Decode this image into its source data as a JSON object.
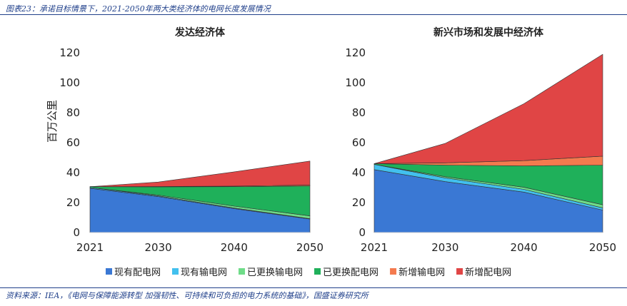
{
  "figure_title": "图表23：承诺目标情景下，2021-2050年两大类经济体的电网长度发展情况",
  "source": "资料来源：IEA，《电网与保障能源转型 加强韧性、可持续和可负担的电力系统的基础》，国盛证券研究所",
  "chart_data": [
    {
      "type": "area",
      "stacked": true,
      "title": "发达经济体",
      "ylabel": "百万公里",
      "x": [
        2021,
        2030,
        2040,
        2050
      ],
      "ylim": [
        0,
        120
      ],
      "yticks": [
        0,
        20,
        40,
        60,
        80,
        100,
        120
      ],
      "xticks": [
        "2021",
        "2030",
        "2040",
        "2050"
      ],
      "series": [
        {
          "name": "现有配电网",
          "color": "#3a78d4",
          "values": [
            29.5,
            24,
            16,
            9
          ]
        },
        {
          "name": "现有输电网",
          "color": "#42c0ee",
          "values": [
            0.6,
            0.5,
            0.4,
            0.3
          ]
        },
        {
          "name": "已更换输电网",
          "color": "#6fdc88",
          "values": [
            0,
            0.5,
            1.2,
            1.8
          ]
        },
        {
          "name": "已更换配电网",
          "color": "#1fb05a",
          "values": [
            0.5,
            5.5,
            13,
            20
          ]
        },
        {
          "name": "新增输电网",
          "color": "#f47a4e",
          "values": [
            0,
            0.2,
            0.4,
            0.6
          ]
        },
        {
          "name": "新增配电网",
          "color": "#e04545",
          "values": [
            0,
            3,
            9.5,
            16
          ]
        }
      ]
    },
    {
      "type": "area",
      "stacked": true,
      "title": "新兴市场和发展中经济体",
      "x": [
        2021,
        2030,
        2040,
        2050
      ],
      "ylim": [
        0,
        120
      ],
      "yticks": [
        0,
        20,
        40,
        60,
        80,
        100,
        120
      ],
      "xticks": [
        "2021",
        "2030",
        "2040",
        "2050"
      ],
      "series": [
        {
          "name": "现有配电网",
          "color": "#3a78d4",
          "values": [
            42,
            34,
            27,
            15
          ]
        },
        {
          "name": "现有输电网",
          "color": "#42c0ee",
          "values": [
            3.5,
            2.5,
            1.8,
            1.5
          ]
        },
        {
          "name": "已更换输电网",
          "color": "#6fdc88",
          "values": [
            0,
            0.8,
            1.4,
            2
          ]
        },
        {
          "name": "已更换配电网",
          "color": "#1fb05a",
          "values": [
            0.5,
            7.7,
            14.3,
            26.5
          ]
        },
        {
          "name": "新增输电网",
          "color": "#f47a4e",
          "values": [
            0,
            1.5,
            3.5,
            6
          ]
        },
        {
          "name": "新增配电网",
          "color": "#e04545",
          "values": [
            0,
            13,
            38,
            68
          ]
        }
      ]
    }
  ],
  "legend": [
    {
      "label": "现有配电网",
      "color": "#3a78d4"
    },
    {
      "label": "现有输电网",
      "color": "#42c0ee"
    },
    {
      "label": "已更换输电网",
      "color": "#6fdc88"
    },
    {
      "label": "已更换配电网",
      "color": "#1fb05a"
    },
    {
      "label": "新增输电网",
      "color": "#f47a4e"
    },
    {
      "label": "新增配电网",
      "color": "#e04545"
    }
  ]
}
